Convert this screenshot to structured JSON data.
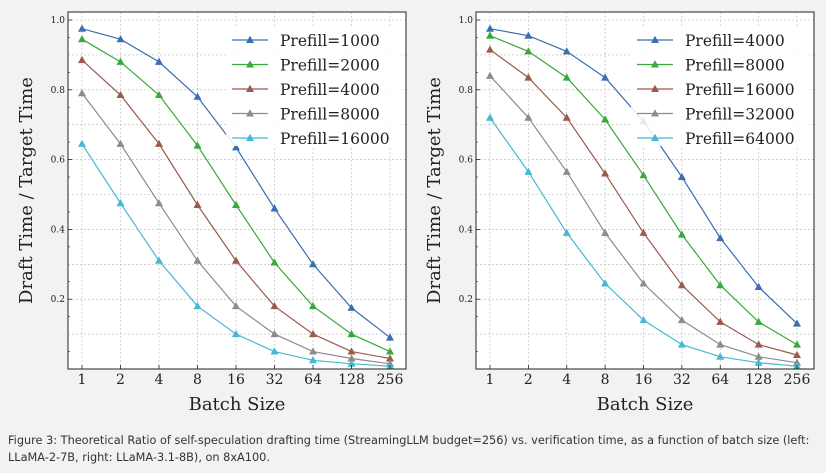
{
  "caption": "Figure 3: Theoretical Ratio of self-speculation drafting time (StreamingLLM budget=256) vs. verification time, as a function of batch size (left: LLaMA-2-7B, right: LLaMA-3.1-8B), on 8xA100.",
  "colors": {
    "c1": "#3b6fb0",
    "c2": "#3aa83a",
    "c3": "#9b5a4c",
    "c4": "#8c8c8c",
    "c5": "#45b8d4"
  },
  "chart_data": [
    {
      "type": "line",
      "title": "",
      "xlabel": "Batch Size",
      "ylabel": "Draft Time / Target Time",
      "x_scale": "log2",
      "categories": [
        "1",
        "2",
        "4",
        "8",
        "16",
        "32",
        "64",
        "128",
        "256"
      ],
      "yticks": [
        "0.2",
        "0.4",
        "0.6",
        "0.8",
        "1.0"
      ],
      "ylim": [
        0.0,
        1.0
      ],
      "grid": true,
      "legend_position": "top-right",
      "series": [
        {
          "name": "Prefill=1000",
          "color": "#3b6fb0",
          "values": [
            0.975,
            0.945,
            0.88,
            0.78,
            0.635,
            0.46,
            0.3,
            0.175,
            0.09
          ]
        },
        {
          "name": "Prefill=2000",
          "color": "#3aa83a",
          "values": [
            0.945,
            0.88,
            0.785,
            0.64,
            0.47,
            0.305,
            0.18,
            0.1,
            0.05
          ]
        },
        {
          "name": "Prefill=4000",
          "color": "#9b5a4c",
          "values": [
            0.885,
            0.785,
            0.645,
            0.47,
            0.31,
            0.18,
            0.1,
            0.05,
            0.03
          ]
        },
        {
          "name": "Prefill=8000",
          "color": "#8c8c8c",
          "values": [
            0.79,
            0.645,
            0.475,
            0.31,
            0.18,
            0.1,
            0.05,
            0.03,
            0.015
          ]
        },
        {
          "name": "Prefill=16000",
          "color": "#45b8d4",
          "values": [
            0.645,
            0.475,
            0.31,
            0.18,
            0.1,
            0.05,
            0.025,
            0.015,
            0.008
          ]
        }
      ]
    },
    {
      "type": "line",
      "title": "",
      "xlabel": "Batch Size",
      "ylabel": "Draft Time / Target Time",
      "x_scale": "log2",
      "categories": [
        "1",
        "2",
        "4",
        "8",
        "16",
        "32",
        "64",
        "128",
        "256"
      ],
      "yticks": [
        "0.2",
        "0.4",
        "0.6",
        "0.8",
        "1.0"
      ],
      "ylim": [
        0.0,
        1.0
      ],
      "grid": true,
      "legend_position": "top-right",
      "series": [
        {
          "name": "Prefill=4000",
          "color": "#3b6fb0",
          "values": [
            0.975,
            0.955,
            0.91,
            0.835,
            0.71,
            0.55,
            0.375,
            0.235,
            0.13
          ]
        },
        {
          "name": "Prefill=8000",
          "color": "#3aa83a",
          "values": [
            0.955,
            0.91,
            0.835,
            0.715,
            0.555,
            0.385,
            0.24,
            0.135,
            0.07
          ]
        },
        {
          "name": "Prefill=16000",
          "color": "#9b5a4c",
          "values": [
            0.915,
            0.835,
            0.72,
            0.56,
            0.39,
            0.24,
            0.135,
            0.07,
            0.04
          ]
        },
        {
          "name": "Prefill=32000",
          "color": "#8c8c8c",
          "values": [
            0.84,
            0.72,
            0.565,
            0.39,
            0.245,
            0.14,
            0.07,
            0.035,
            0.018
          ]
        },
        {
          "name": "Prefill=64000",
          "color": "#45b8d4",
          "values": [
            0.72,
            0.565,
            0.39,
            0.245,
            0.14,
            0.07,
            0.035,
            0.018,
            0.008
          ]
        }
      ]
    }
  ]
}
